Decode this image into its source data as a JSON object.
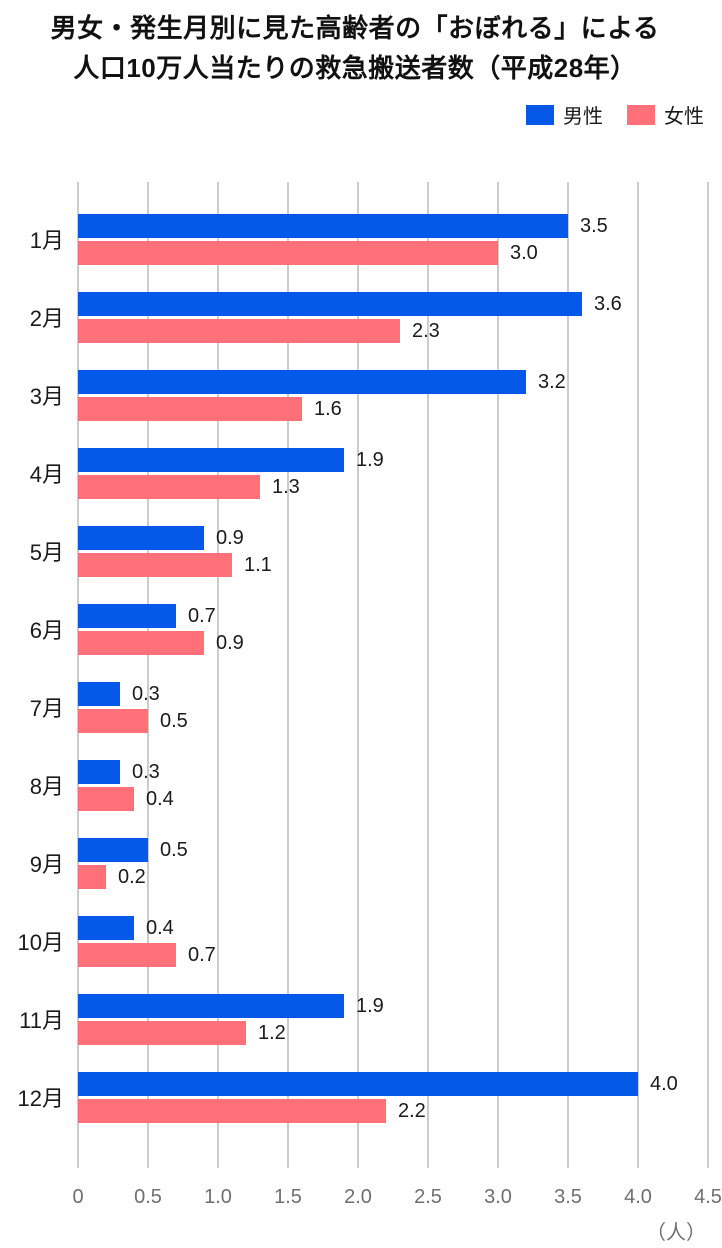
{
  "title": {
    "line1": "男女・発生月別に見た高齢者の「おぼれる」による",
    "line2": "人口10万人当たりの救急搬送者数（平成28年）"
  },
  "legend": [
    {
      "label": "男性",
      "color": "#0659e8"
    },
    {
      "label": "女性",
      "color": "#ff7078"
    }
  ],
  "axis": {
    "ticks": [
      "0",
      "0.5",
      "1.0",
      "1.5",
      "2.0",
      "2.5",
      "3.0",
      "3.5",
      "4.0",
      "4.5"
    ],
    "unit_label": "（人）"
  },
  "chart_data": {
    "type": "bar",
    "orientation": "horizontal",
    "title": "男女・発生月別に見た高齢者の「おぼれる」による人口10万人当たりの救急搬送者数（平成28年）",
    "categories": [
      "1月",
      "2月",
      "3月",
      "4月",
      "5月",
      "6月",
      "7月",
      "8月",
      "9月",
      "10月",
      "11月",
      "12月"
    ],
    "series": [
      {
        "name": "男性",
        "color": "#0659e8",
        "values": [
          3.5,
          3.6,
          3.2,
          1.9,
          0.9,
          0.7,
          0.3,
          0.3,
          0.5,
          0.4,
          1.9,
          4.0
        ]
      },
      {
        "name": "女性",
        "color": "#ff7078",
        "values": [
          3.0,
          2.3,
          1.6,
          1.3,
          1.1,
          0.9,
          0.5,
          0.4,
          0.2,
          0.7,
          1.2,
          2.2
        ]
      }
    ],
    "xlim": [
      0,
      4.5
    ],
    "xlabel": "（人）",
    "grid": true,
    "value_labels": true,
    "legend_position": "top-right",
    "gridline_color": "#cccccc"
  }
}
